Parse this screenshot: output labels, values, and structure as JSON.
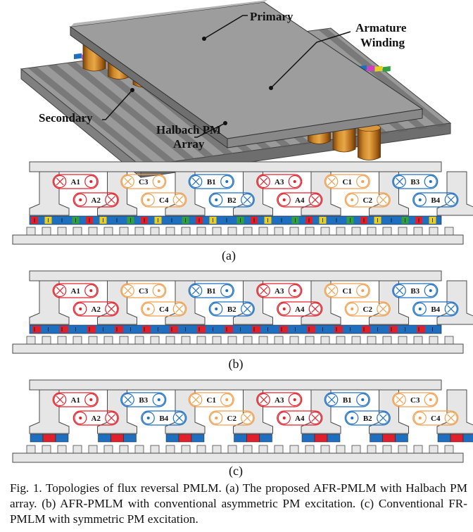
{
  "top_labels": {
    "primary": "Primary",
    "armature_line1": "Armature",
    "armature_line2": "Winding",
    "secondary": "Secondary",
    "halbach_line1": "Halbach PM",
    "halbach_line2": "Array"
  },
  "panels": [
    {
      "id": "a",
      "sublabel": "(a)",
      "pm_style": "halbach",
      "coils_top": [
        "A1",
        "C3",
        "B1",
        "A3",
        "C1",
        "B3"
      ],
      "coils_bottom": [
        "A2",
        "C4",
        "B2",
        "A4",
        "C2",
        "B4"
      ],
      "top_colors": [
        "red",
        "orange",
        "blue",
        "red",
        "orange",
        "blue"
      ],
      "bottom_colors": [
        "red",
        "orange",
        "blue",
        "red",
        "orange",
        "blue"
      ]
    },
    {
      "id": "b",
      "sublabel": "(b)",
      "pm_style": "asymmetric",
      "coils_top": [
        "A1",
        "C3",
        "B1",
        "A3",
        "C1",
        "B3"
      ],
      "coils_bottom": [
        "A2",
        "C4",
        "B2",
        "A4",
        "C2",
        "B4"
      ],
      "top_colors": [
        "red",
        "orange",
        "blue",
        "red",
        "orange",
        "blue"
      ],
      "bottom_colors": [
        "red",
        "orange",
        "blue",
        "red",
        "orange",
        "blue"
      ]
    },
    {
      "id": "c",
      "sublabel": "(c)",
      "pm_style": "symmetric",
      "coils_top": [
        "A1",
        "B3",
        "C1",
        "A3",
        "B1",
        "C3"
      ],
      "coils_bottom": [
        "A2",
        "B4",
        "C2",
        "A4",
        "B2",
        "C4"
      ],
      "top_colors": [
        "red",
        "blue",
        "orange",
        "red",
        "blue",
        "orange"
      ],
      "bottom_colors": [
        "red",
        "blue",
        "orange",
        "red",
        "blue",
        "orange"
      ]
    }
  ],
  "caption": "Fig. 1. Topologies of flux reversal PMLM. (a) The proposed AFR-PMLM with Halbach PM array. (b) AFR-PMLM with conventional asymmetric PM excitation. (c) Conventional FR-PMLM with symmetric PM excitation.",
  "colors": {
    "red": "#e0202a",
    "orange": "#f0a050",
    "blue": "#1e6fc0",
    "iron": "#e6e6e6",
    "outline": "#555555",
    "copper": "#c87a1e",
    "magenta": "#d040c0",
    "yellow": "#e8d020",
    "green": "#30a040"
  }
}
